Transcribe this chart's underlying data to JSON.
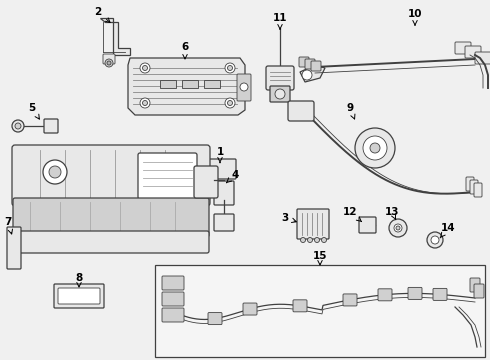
{
  "bg_color": "#f0f0f0",
  "line_color": "#404040",
  "text_color": "#000000",
  "inset_bg": "#f8f8f8",
  "lw_thick": 1.4,
  "lw_med": 0.9,
  "lw_thin": 0.6,
  "label_fs": 7.5
}
